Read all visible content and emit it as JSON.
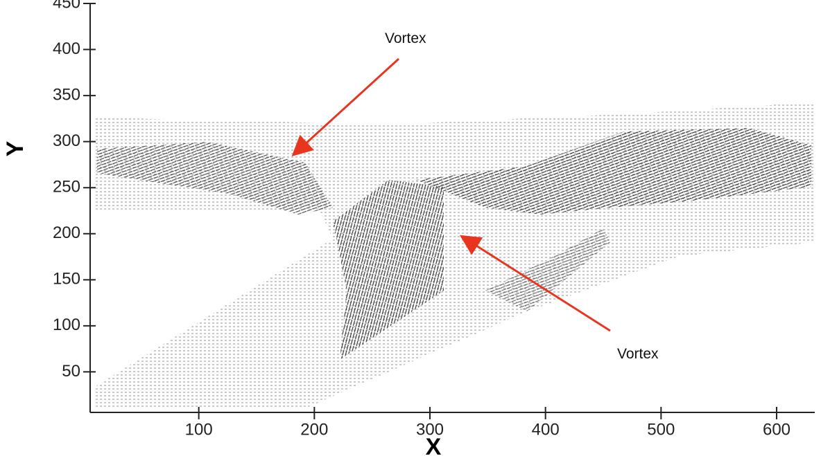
{
  "chart_data": {
    "type": "quiver",
    "xlabel": "X",
    "ylabel": "Y",
    "xlim": [
      6,
      633
    ],
    "ylim": [
      6,
      450
    ],
    "xticks": [
      100,
      200,
      300,
      400,
      500,
      600
    ],
    "yticks": [
      50,
      100,
      150,
      200,
      250,
      300,
      350,
      400,
      450
    ],
    "annotations": [
      "Vortex",
      "Vortex"
    ],
    "color": "#000000"
  }
}
